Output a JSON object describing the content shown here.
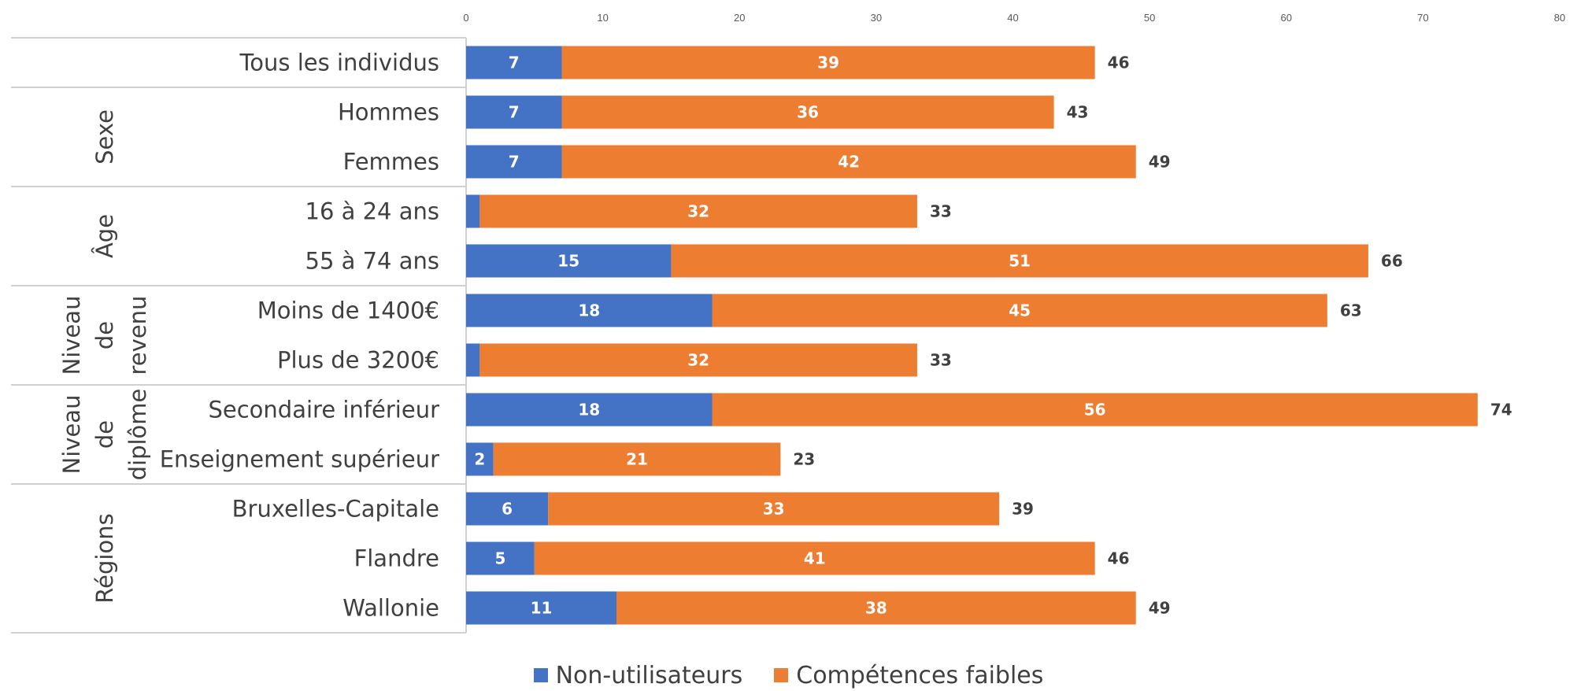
{
  "chart_data": {
    "type": "bar",
    "orientation": "horizontal",
    "stacked": true,
    "xlim": [
      0,
      80
    ],
    "x_ticks": [
      "0",
      "10",
      "20",
      "30",
      "40",
      "50",
      "60",
      "70",
      "80"
    ],
    "axis_position": "top",
    "grid": false,
    "legend_position": "bottom",
    "groups": [
      {
        "name": "",
        "start": 0,
        "end": 0
      },
      {
        "name": "Sexe",
        "start": 1,
        "end": 2
      },
      {
        "name": "Âge",
        "start": 3,
        "end": 4
      },
      {
        "name": "Niveau de revenu",
        "start": 5,
        "end": 6
      },
      {
        "name": "Niveau de diplôme",
        "start": 7,
        "end": 8
      },
      {
        "name": "Régions",
        "start": 9,
        "end": 11
      }
    ],
    "categories": [
      "Tous les individus",
      "Hommes",
      "Femmes",
      "16 à 24 ans",
      "55 à 74 ans",
      "Moins de 1400€",
      "Plus de 3200€",
      "Secondaire inférieur",
      "Enseignement supérieur",
      "Bruxelles-Capitale",
      "Flandre",
      "Wallonie"
    ],
    "series": [
      {
        "name": "Non-utilisateurs",
        "color": "#4472c4",
        "values": [
          7,
          7,
          7,
          1,
          15,
          18,
          1,
          18,
          2,
          6,
          5,
          11
        ],
        "labels": [
          "7",
          "7",
          "7",
          "",
          "15",
          "18",
          "",
          "18",
          "2",
          "6",
          "5",
          "11"
        ]
      },
      {
        "name": "Compétences faibles",
        "color": "#ed7d31",
        "values": [
          39,
          36,
          42,
          32,
          51,
          45,
          32,
          56,
          21,
          33,
          41,
          38
        ],
        "labels": [
          "39",
          "36",
          "42",
          "32",
          "51",
          "45",
          "32",
          "56",
          "21",
          "33",
          "41",
          "38"
        ]
      }
    ],
    "totals": [
      46,
      43,
      49,
      33,
      66,
      63,
      33,
      74,
      23,
      39,
      46,
      49
    ]
  }
}
